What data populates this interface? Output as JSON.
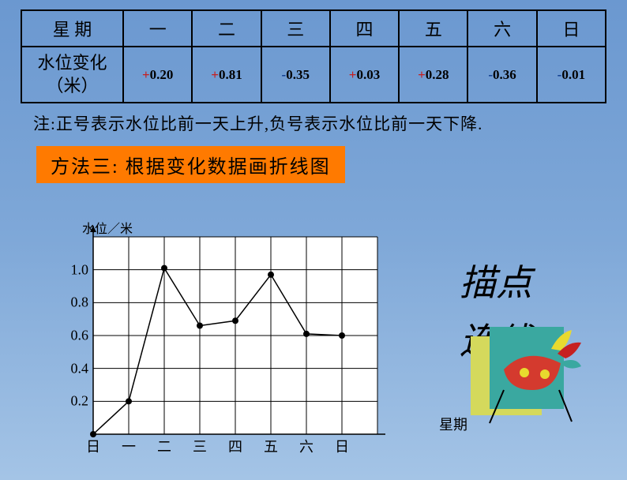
{
  "table": {
    "header_label": "星 期",
    "row_label": "水位变化\n（米）",
    "days": [
      "一",
      "二",
      "三",
      "四",
      "五",
      "六",
      "日"
    ],
    "values": [
      "+0.20",
      "+0.81",
      "-0.35",
      "+0.03",
      "+0.28",
      "-0.36",
      "-0.01"
    ],
    "signs": [
      "+",
      "+",
      "-",
      "+",
      "+",
      "-",
      "-"
    ],
    "border_color": "#000000",
    "sign_plus_color": "#c62020",
    "sign_minus_color": "#103d8f",
    "header_fontsize": 22,
    "data_fontsize": 17
  },
  "note": "注:正号表示水位比前一天上升,负号表示水位比前一天下降.",
  "method_box": {
    "text": "方法三:   根据变化数据画折线图",
    "bg": "#ff7a00"
  },
  "chart": {
    "type": "line",
    "y_title": "水位／米",
    "x_title": "星期",
    "x_categories": [
      "日",
      "一",
      "二",
      "三",
      "四",
      "五",
      "六",
      "日"
    ],
    "y_ticks": [
      0.2,
      0.4,
      0.6,
      0.8,
      1.0
    ],
    "points_y": [
      0.0,
      0.2,
      1.01,
      0.66,
      0.69,
      0.97,
      0.61,
      0.6
    ],
    "y_min": 0.0,
    "y_max": 1.2,
    "grid_color": "#000000",
    "plot_bg": "#ffffff",
    "line_color": "#000000",
    "marker_color": "#000000",
    "marker_radius": 4,
    "line_width": 1.5,
    "grid_cols": 8,
    "grid_rows": 6,
    "label_fontsize": 18,
    "title_fontsize": 16
  },
  "side_text": {
    "line1": "描点",
    "line2": "连线",
    "fontsize": 46
  },
  "page_bg_top": "#6b98d0",
  "page_bg_bottom": "#a4c4e6"
}
